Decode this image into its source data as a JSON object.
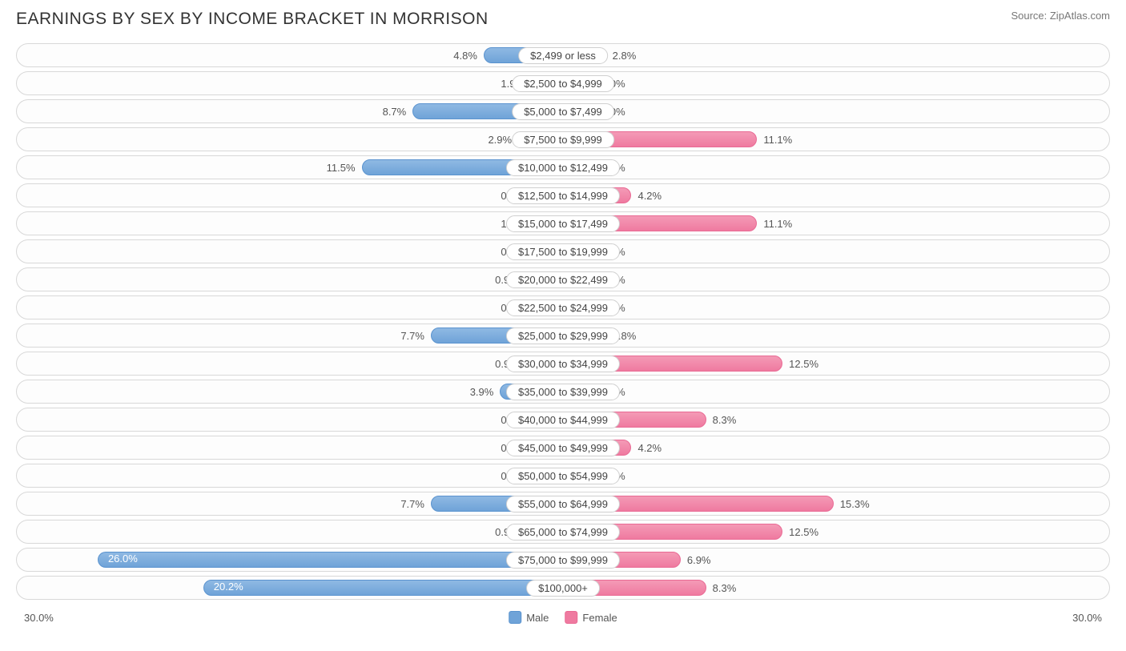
{
  "title": "EARNINGS BY SEX BY INCOME BRACKET IN MORRISON",
  "source": "Source: ZipAtlas.com",
  "chart": {
    "type": "diverging-bar",
    "axis_max": 30.0,
    "axis_label_left": "30.0%",
    "axis_label_right": "30.0%",
    "min_bar_pct": 2.2,
    "inside_label_threshold": 18.0,
    "colors": {
      "male_fill_top": "#8fb9e3",
      "male_fill_bottom": "#6fa3d8",
      "male_border": "#5a93cf",
      "female_fill_top": "#f49ab6",
      "female_fill_bottom": "#ef7aa0",
      "female_border": "#e96a94",
      "row_border": "#d8d8d8",
      "row_bg": "#fdfdfd",
      "text": "#555555",
      "title_text": "#333333",
      "background": "#ffffff"
    },
    "legend": {
      "male": "Male",
      "female": "Female"
    },
    "rows": [
      {
        "label": "$2,499 or less",
        "male": 4.8,
        "male_label": "4.8%",
        "female": 2.8,
        "female_label": "2.8%"
      },
      {
        "label": "$2,500 to $4,999",
        "male": 1.9,
        "male_label": "1.9%",
        "female": 0.0,
        "female_label": "0.0%"
      },
      {
        "label": "$5,000 to $7,499",
        "male": 8.7,
        "male_label": "8.7%",
        "female": 0.0,
        "female_label": "0.0%"
      },
      {
        "label": "$7,500 to $9,999",
        "male": 2.9,
        "male_label": "2.9%",
        "female": 11.1,
        "female_label": "11.1%"
      },
      {
        "label": "$10,000 to $12,499",
        "male": 11.5,
        "male_label": "11.5%",
        "female": 0.0,
        "female_label": "0.0%"
      },
      {
        "label": "$12,500 to $14,999",
        "male": 0.0,
        "male_label": "0.0%",
        "female": 4.2,
        "female_label": "4.2%"
      },
      {
        "label": "$15,000 to $17,499",
        "male": 1.9,
        "male_label": "1.9%",
        "female": 11.1,
        "female_label": "11.1%"
      },
      {
        "label": "$17,500 to $19,999",
        "male": 0.0,
        "male_label": "0.0%",
        "female": 0.0,
        "female_label": "0.0%"
      },
      {
        "label": "$20,000 to $22,499",
        "male": 0.96,
        "male_label": "0.96%",
        "female": 0.0,
        "female_label": "0.0%"
      },
      {
        "label": "$22,500 to $24,999",
        "male": 0.0,
        "male_label": "0.0%",
        "female": 0.0,
        "female_label": "0.0%"
      },
      {
        "label": "$25,000 to $29,999",
        "male": 7.7,
        "male_label": "7.7%",
        "female": 2.8,
        "female_label": "2.8%"
      },
      {
        "label": "$30,000 to $34,999",
        "male": 0.96,
        "male_label": "0.96%",
        "female": 12.5,
        "female_label": "12.5%"
      },
      {
        "label": "$35,000 to $39,999",
        "male": 3.9,
        "male_label": "3.9%",
        "female": 0.0,
        "female_label": "0.0%"
      },
      {
        "label": "$40,000 to $44,999",
        "male": 0.0,
        "male_label": "0.0%",
        "female": 8.3,
        "female_label": "8.3%"
      },
      {
        "label": "$45,000 to $49,999",
        "male": 0.0,
        "male_label": "0.0%",
        "female": 4.2,
        "female_label": "4.2%"
      },
      {
        "label": "$50,000 to $54,999",
        "male": 0.0,
        "male_label": "0.0%",
        "female": 0.0,
        "female_label": "0.0%"
      },
      {
        "label": "$55,000 to $64,999",
        "male": 7.7,
        "male_label": "7.7%",
        "female": 15.3,
        "female_label": "15.3%"
      },
      {
        "label": "$65,000 to $74,999",
        "male": 0.96,
        "male_label": "0.96%",
        "female": 12.5,
        "female_label": "12.5%"
      },
      {
        "label": "$75,000 to $99,999",
        "male": 26.0,
        "male_label": "26.0%",
        "female": 6.9,
        "female_label": "6.9%"
      },
      {
        "label": "$100,000+",
        "male": 20.2,
        "male_label": "20.2%",
        "female": 8.3,
        "female_label": "8.3%"
      }
    ]
  }
}
